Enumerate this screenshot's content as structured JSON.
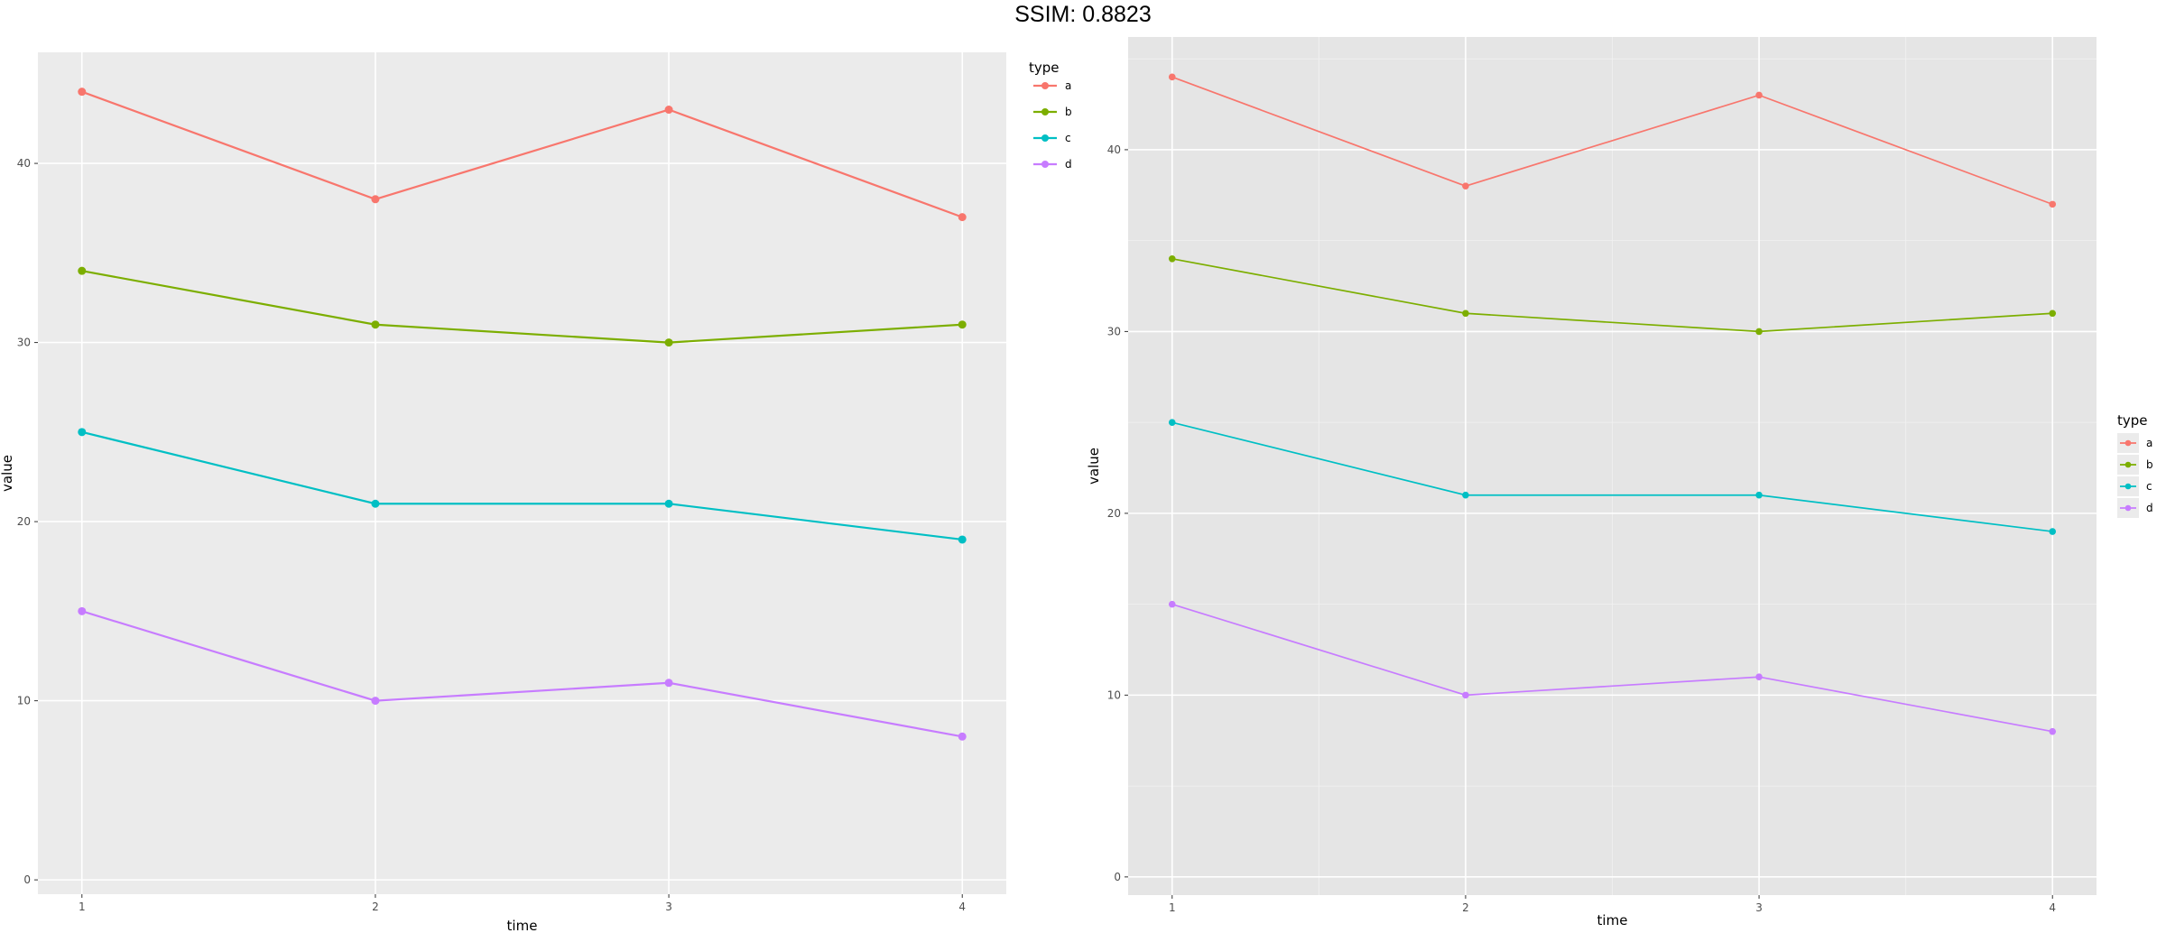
{
  "page_title": "SSIM: 0.8823",
  "chart_data": [
    {
      "type": "line",
      "panel": "left",
      "x": [
        1,
        2,
        3,
        4
      ],
      "series": [
        {
          "name": "a",
          "values": [
            44,
            38,
            43,
            37
          ],
          "color": "#F8766D"
        },
        {
          "name": "b",
          "values": [
            34,
            31,
            30,
            31
          ],
          "color": "#7CAE00"
        },
        {
          "name": "c",
          "values": [
            25,
            21,
            21,
            19
          ],
          "color": "#00BFC4"
        },
        {
          "name": "d",
          "values": [
            15,
            10,
            11,
            8
          ],
          "color": "#C77CFF"
        }
      ],
      "xlabel": "time",
      "ylabel": "value",
      "legend_title": "type",
      "legend_position": "top-right",
      "xticks": [
        1,
        2,
        3,
        4
      ],
      "yticks": [
        0,
        10,
        20,
        30,
        40
      ],
      "xlim": [
        0.85,
        4.15
      ],
      "ylim": [
        -0.8,
        46.2
      ],
      "grid": true,
      "panel_bg": "#ebebeb"
    },
    {
      "type": "line",
      "panel": "right",
      "x": [
        1,
        2,
        3,
        4
      ],
      "series": [
        {
          "name": "a",
          "values": [
            44,
            38,
            43,
            37
          ],
          "color": "#F8766D"
        },
        {
          "name": "b",
          "values": [
            34,
            31,
            30,
            31
          ],
          "color": "#7CAE00"
        },
        {
          "name": "c",
          "values": [
            25,
            21,
            21,
            19
          ],
          "color": "#00BFC4"
        },
        {
          "name": "d",
          "values": [
            15,
            10,
            11,
            8
          ],
          "color": "#C77CFF"
        }
      ],
      "xlabel": "time",
      "ylabel": "value",
      "legend_title": "type",
      "legend_position": "right",
      "xticks": [
        1,
        2,
        3,
        4
      ],
      "yticks": [
        0,
        10,
        20,
        30,
        40
      ],
      "xlim": [
        0.85,
        4.15
      ],
      "ylim": [
        -1.0,
        46.2
      ],
      "grid": true,
      "panel_bg": "#e5e5e5"
    }
  ]
}
